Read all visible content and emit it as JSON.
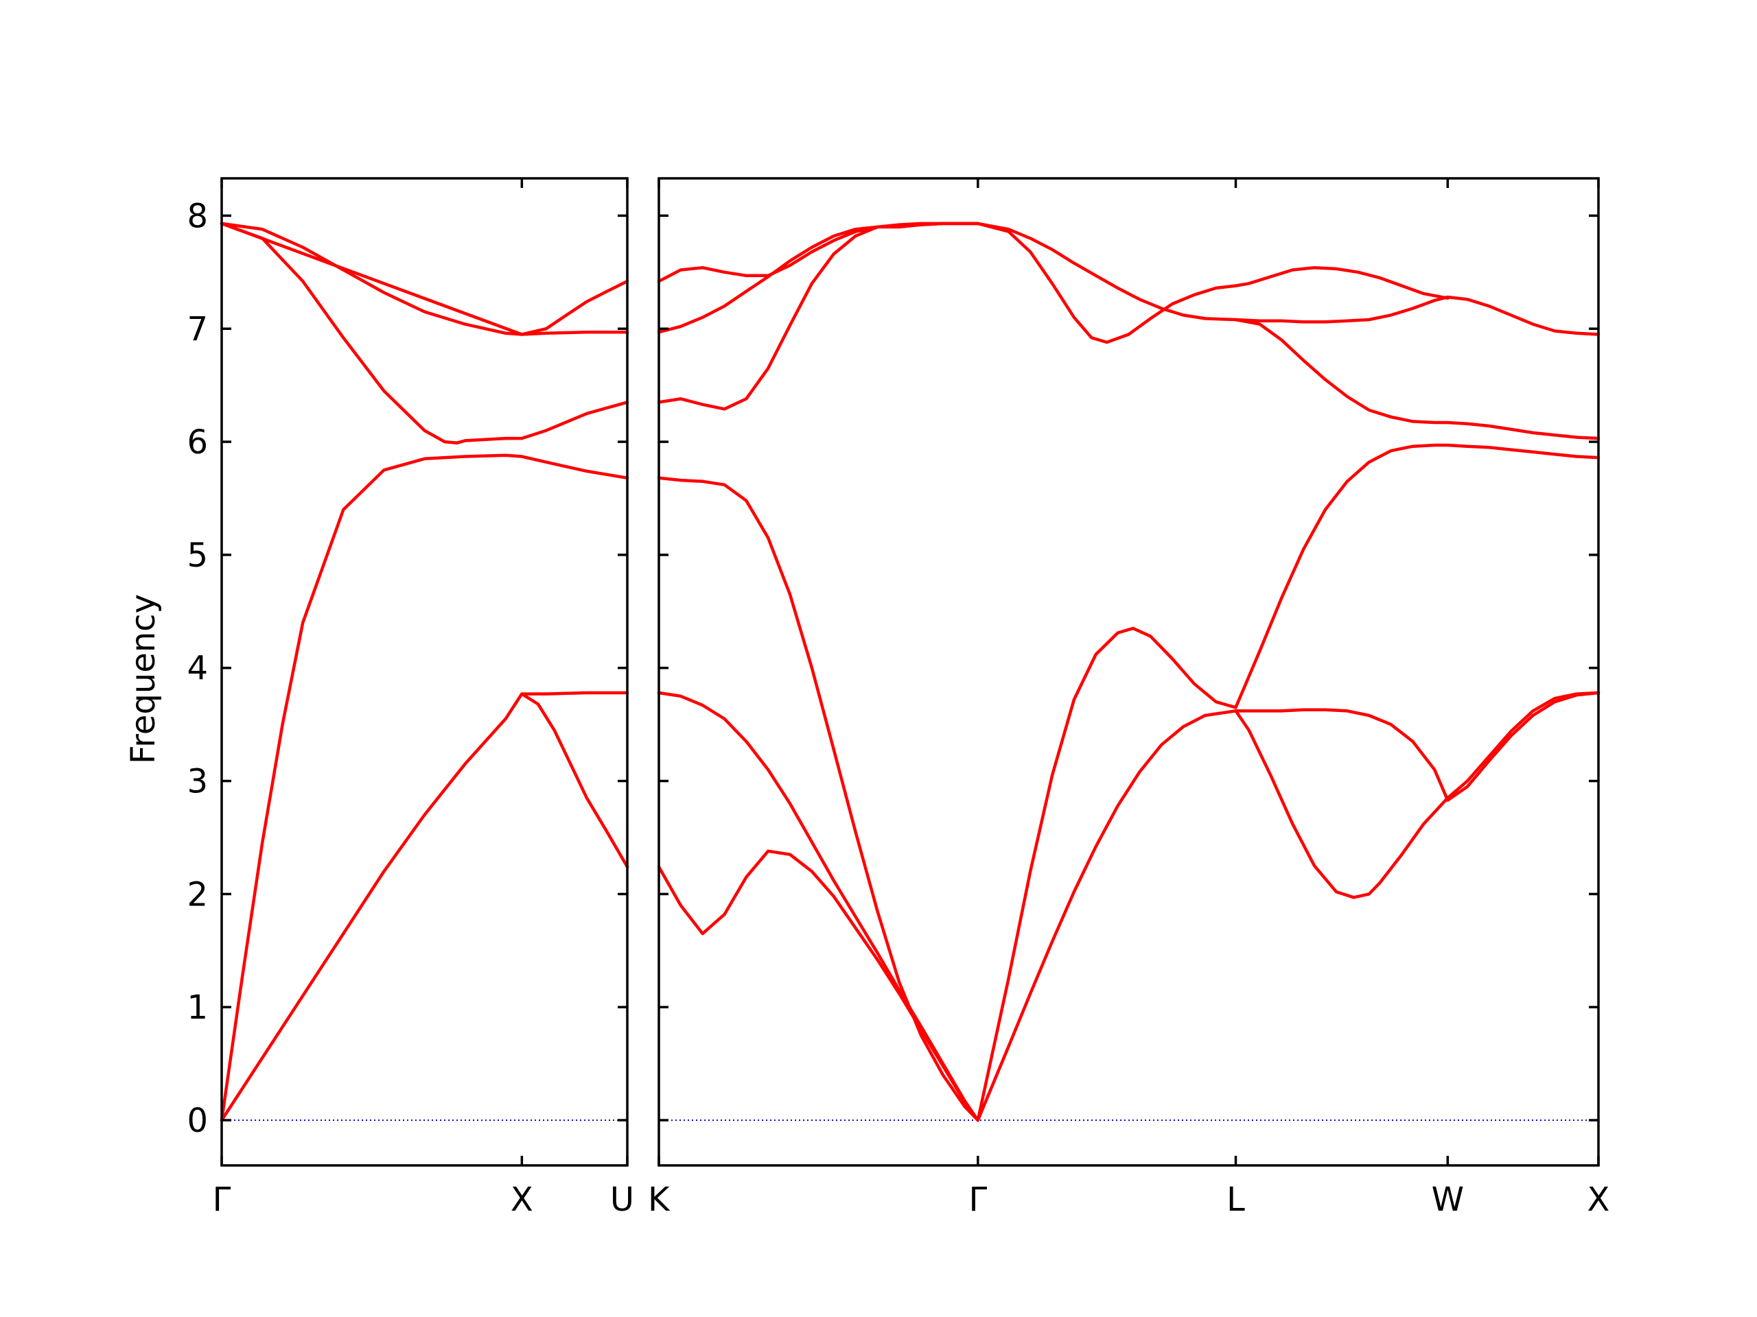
{
  "chart_data": {
    "type": "line",
    "title": "",
    "xlabel": "",
    "ylabel": "Frequency",
    "ylim": [
      -0.4,
      8.33
    ],
    "yticks": [
      0,
      1,
      2,
      3,
      4,
      5,
      6,
      7,
      8
    ],
    "grid": false,
    "legend": "none",
    "colors": {
      "bands": "#ff0000",
      "zero": "#0000cc",
      "axes": "#000000"
    },
    "panels": [
      {
        "xlim": [
          0,
          1.0
        ],
        "high_symmetry_points": [
          {
            "label": "Γ",
            "x": 0.0
          },
          {
            "label": "X",
            "x": 0.74
          },
          {
            "label": "U",
            "x": 1.0
          }
        ],
        "series": [
          {
            "x": [
              0,
              0.1,
              0.2,
              0.3,
              0.4,
              0.5,
              0.6,
              0.7,
              0.74,
              0.8,
              0.9,
              1.0
            ],
            "y": [
              0,
              0.55,
              1.1,
              1.65,
              2.2,
              2.7,
              3.15,
              3.55,
              3.77,
              3.77,
              3.78,
              3.78
            ]
          },
          {
            "x": [
              0,
              0.05,
              0.1,
              0.15,
              0.2,
              0.3,
              0.4,
              0.5,
              0.55,
              0.6,
              0.7,
              0.74,
              0.8,
              0.9,
              1.0
            ],
            "y": [
              0,
              1.25,
              2.45,
              3.5,
              4.4,
              5.4,
              5.75,
              5.85,
              5.86,
              5.87,
              5.88,
              5.87,
              5.82,
              5.74,
              5.68
            ]
          },
          {
            "x": [
              0,
              0.1,
              0.2,
              0.3,
              0.4,
              0.5,
              0.55,
              0.58,
              0.6,
              0.7,
              0.74,
              0.8,
              0.9,
              1.0
            ],
            "y": [
              7.93,
              7.8,
              7.42,
              6.92,
              6.45,
              6.1,
              6.0,
              5.99,
              6.01,
              6.03,
              6.03,
              6.1,
              6.25,
              6.35
            ]
          },
          {
            "x": [
              0,
              0.1,
              0.2,
              0.3,
              0.4,
              0.5,
              0.6,
              0.7,
              0.74,
              0.8,
              0.9,
              1.0
            ],
            "y": [
              7.93,
              7.88,
              7.72,
              7.52,
              7.32,
              7.15,
              7.04,
              6.96,
              6.95,
              6.96,
              6.97,
              6.97
            ]
          },
          {
            "x": [
              0,
              0.74,
              0.8,
              0.85,
              0.9,
              0.95,
              1.0
            ],
            "y": [
              7.93,
              6.95,
              7.0,
              7.12,
              7.24,
              7.33,
              7.42
            ]
          },
          {
            "x": [
              0.74,
              0.78,
              0.82,
              0.86,
              0.9,
              0.95,
              1.0
            ],
            "y": [
              3.77,
              3.68,
              3.45,
              3.15,
              2.85,
              2.55,
              2.24
            ]
          }
        ]
      },
      {
        "xlim": [
          0,
          4.3
        ],
        "high_symmetry_points": [
          {
            "label": "K",
            "x": 0.0
          },
          {
            "label": "Γ",
            "x": 1.46
          },
          {
            "label": "L",
            "x": 2.64
          },
          {
            "label": "W",
            "x": 3.61
          },
          {
            "label": "X",
            "x": 4.3
          }
        ],
        "series": [
          {
            "x": [
              0,
              0.1,
              0.2,
              0.3,
              0.4,
              0.5,
              0.6,
              0.7,
              0.8,
              0.9,
              1.0,
              1.1,
              1.2,
              1.3,
              1.4,
              1.46
            ],
            "y": [
              3.78,
              3.75,
              3.67,
              3.55,
              3.35,
              3.1,
              2.8,
              2.46,
              2.12,
              1.8,
              1.48,
              1.15,
              0.83,
              0.5,
              0.17,
              0
            ]
          },
          {
            "x": [
              0,
              0.1,
              0.2,
              0.3,
              0.4,
              0.5,
              0.6,
              0.7,
              0.8,
              0.9,
              1.0,
              1.1,
              1.2,
              1.3,
              1.4,
              1.46
            ],
            "y": [
              2.24,
              1.9,
              1.65,
              1.82,
              2.15,
              2.38,
              2.35,
              2.2,
              1.98,
              1.7,
              1.42,
              1.12,
              0.8,
              0.48,
              0.16,
              0
            ]
          },
          {
            "x": [
              0,
              0.1,
              0.2,
              0.3,
              0.4,
              0.5,
              0.6,
              0.7,
              0.8,
              0.9,
              1.0,
              1.1,
              1.2,
              1.3,
              1.4,
              1.46
            ],
            "y": [
              5.68,
              5.66,
              5.65,
              5.62,
              5.48,
              5.15,
              4.65,
              4.0,
              3.28,
              2.55,
              1.85,
              1.22,
              0.75,
              0.4,
              0.12,
              0
            ]
          },
          {
            "x": [
              0,
              0.1,
              0.2,
              0.3,
              0.4,
              0.5,
              0.6,
              0.7,
              0.8,
              0.9,
              1.0,
              1.1,
              1.2,
              1.3,
              1.4,
              1.46
            ],
            "y": [
              6.35,
              6.38,
              6.33,
              6.29,
              6.38,
              6.65,
              7.03,
              7.4,
              7.66,
              7.82,
              7.9,
              7.92,
              7.93,
              7.93,
              7.93,
              7.93
            ]
          },
          {
            "x": [
              0,
              0.1,
              0.2,
              0.3,
              0.4,
              0.5,
              0.6,
              0.7,
              0.8,
              0.9,
              1.0,
              1.1,
              1.2,
              1.3,
              1.4,
              1.46
            ],
            "y": [
              6.97,
              7.02,
              7.1,
              7.2,
              7.33,
              7.46,
              7.6,
              7.72,
              7.82,
              7.88,
              7.9,
              7.9,
              7.92,
              7.93,
              7.93,
              7.93
            ]
          },
          {
            "x": [
              0,
              0.1,
              0.2,
              0.3,
              0.4,
              0.5,
              0.6,
              0.7,
              0.8,
              0.9,
              1.0,
              1.1,
              1.2,
              1.3,
              1.4,
              1.46
            ],
            "y": [
              7.42,
              7.52,
              7.54,
              7.5,
              7.47,
              7.47,
              7.56,
              7.68,
              7.78,
              7.86,
              7.9,
              7.91,
              7.92,
              7.93,
              7.93,
              7.93
            ]
          },
          {
            "x": [
              1.46,
              1.6,
              1.7,
              1.8,
              1.9,
              2.0,
              2.1,
              2.2,
              2.3,
              2.4,
              2.5,
              2.64
            ],
            "y": [
              0,
              0.65,
              1.12,
              1.58,
              2.02,
              2.42,
              2.78,
              3.08,
              3.32,
              3.48,
              3.58,
              3.62
            ]
          },
          {
            "x": [
              1.46,
              1.6,
              1.7,
              1.8,
              1.9,
              2.0,
              2.1,
              2.17,
              2.25,
              2.35,
              2.45,
              2.55,
              2.64
            ],
            "y": [
              0,
              1.25,
              2.2,
              3.05,
              3.72,
              4.12,
              4.31,
              4.35,
              4.28,
              4.08,
              3.86,
              3.7,
              3.65
            ]
          },
          {
            "x": [
              1.46,
              1.6,
              1.7,
              1.8,
              1.9,
              1.98,
              2.05,
              2.15,
              2.25,
              2.35,
              2.45,
              2.55,
              2.64
            ],
            "y": [
              7.93,
              7.86,
              7.68,
              7.4,
              7.1,
              6.92,
              6.88,
              6.95,
              7.09,
              7.22,
              7.3,
              7.36,
              7.38
            ]
          },
          {
            "x": [
              1.46,
              1.6,
              1.7,
              1.8,
              1.9,
              2.0,
              2.1,
              2.2,
              2.3,
              2.4,
              2.5,
              2.64
            ],
            "y": [
              7.93,
              7.88,
              7.8,
              7.7,
              7.58,
              7.47,
              7.36,
              7.26,
              7.18,
              7.12,
              7.09,
              7.08
            ]
          },
          {
            "x": [
              2.64,
              2.75,
              2.85,
              2.95,
              3.05,
              3.15,
              3.25,
              3.35,
              3.45,
              3.55,
              3.61,
              3.7,
              3.8,
              3.9,
              4.0,
              4.1,
              4.2,
              4.3
            ],
            "y": [
              3.62,
              3.62,
              3.62,
              3.63,
              3.63,
              3.62,
              3.58,
              3.5,
              3.35,
              3.1,
              2.83,
              2.95,
              3.18,
              3.4,
              3.58,
              3.7,
              3.76,
              3.78
            ]
          },
          {
            "x": [
              2.64,
              2.7,
              2.8,
              2.9,
              3.0,
              3.1,
              3.18,
              3.25,
              3.3,
              3.4,
              3.5,
              3.61,
              3.7,
              3.8,
              3.9,
              4.0,
              4.1,
              4.2,
              4.3
            ],
            "y": [
              3.62,
              3.45,
              3.05,
              2.62,
              2.25,
              2.02,
              1.97,
              2.0,
              2.1,
              2.35,
              2.62,
              2.85,
              3.0,
              3.22,
              3.44,
              3.62,
              3.73,
              3.77,
              3.78
            ]
          },
          {
            "x": [
              2.64,
              2.75,
              2.85,
              2.95,
              3.05,
              3.15,
              3.25,
              3.35,
              3.45,
              3.55,
              3.61,
              3.7,
              3.8,
              3.9,
              4.0,
              4.1,
              4.2,
              4.3
            ],
            "y": [
              3.65,
              4.15,
              4.62,
              5.05,
              5.4,
              5.65,
              5.82,
              5.92,
              5.96,
              5.97,
              5.97,
              5.96,
              5.95,
              5.93,
              5.91,
              5.89,
              5.87,
              5.86
            ]
          },
          {
            "x": [
              2.64,
              2.75,
              2.85,
              2.95,
              3.05,
              3.15,
              3.25,
              3.35,
              3.45,
              3.55,
              3.61,
              3.7,
              3.8,
              3.9,
              4.0,
              4.1,
              4.2,
              4.3
            ],
            "y": [
              7.08,
              7.04,
              6.9,
              6.72,
              6.55,
              6.4,
              6.28,
              6.22,
              6.18,
              6.17,
              6.17,
              6.16,
              6.14,
              6.11,
              6.08,
              6.06,
              6.04,
              6.03
            ]
          },
          {
            "x": [
              2.64,
              2.75,
              2.85,
              2.95,
              3.05,
              3.15,
              3.25,
              3.35,
              3.45,
              3.55,
              3.61,
              3.7,
              3.8,
              3.9,
              4.0,
              4.1,
              4.2,
              4.3
            ],
            "y": [
              7.08,
              7.07,
              7.07,
              7.06,
              7.06,
              7.07,
              7.08,
              7.12,
              7.18,
              7.25,
              7.28,
              7.26,
              7.2,
              7.12,
              7.04,
              6.98,
              6.96,
              6.95
            ]
          },
          {
            "x": [
              2.64,
              2.7,
              2.8,
              2.9,
              3.0,
              3.1,
              3.2,
              3.3,
              3.4,
              3.5,
              3.61
            ],
            "y": [
              7.38,
              7.4,
              7.46,
              7.52,
              7.54,
              7.53,
              7.5,
              7.45,
              7.38,
              7.31,
              7.27
            ]
          }
        ]
      }
    ]
  }
}
